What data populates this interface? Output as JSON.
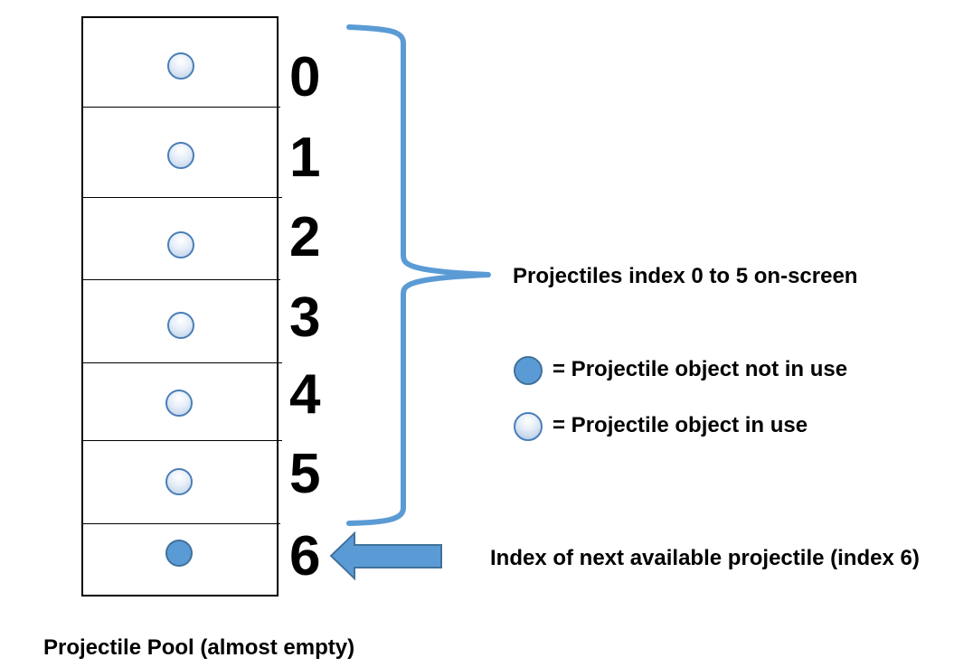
{
  "pool": {
    "caption": "Projectile Pool (almost empty)",
    "slots": [
      {
        "index": "0",
        "state": "in-use"
      },
      {
        "index": "1",
        "state": "in-use"
      },
      {
        "index": "2",
        "state": "in-use"
      },
      {
        "index": "3",
        "state": "in-use"
      },
      {
        "index": "4",
        "state": "in-use"
      },
      {
        "index": "5",
        "state": "in-use"
      },
      {
        "index": "6",
        "state": "not-in-use"
      }
    ]
  },
  "annotations": {
    "bracket_label": "Projectiles index 0 to 5 on-screen",
    "next_available_label": "Index of next available projectile (index 6)"
  },
  "legend": {
    "not_in_use": "= Projectile object not in use",
    "in_use": "= Projectile object in use"
  },
  "colors": {
    "accent": "#5b9bd5",
    "in_use_fill": "#dce8f5",
    "not_in_use_fill": "#5b9bd5"
  }
}
